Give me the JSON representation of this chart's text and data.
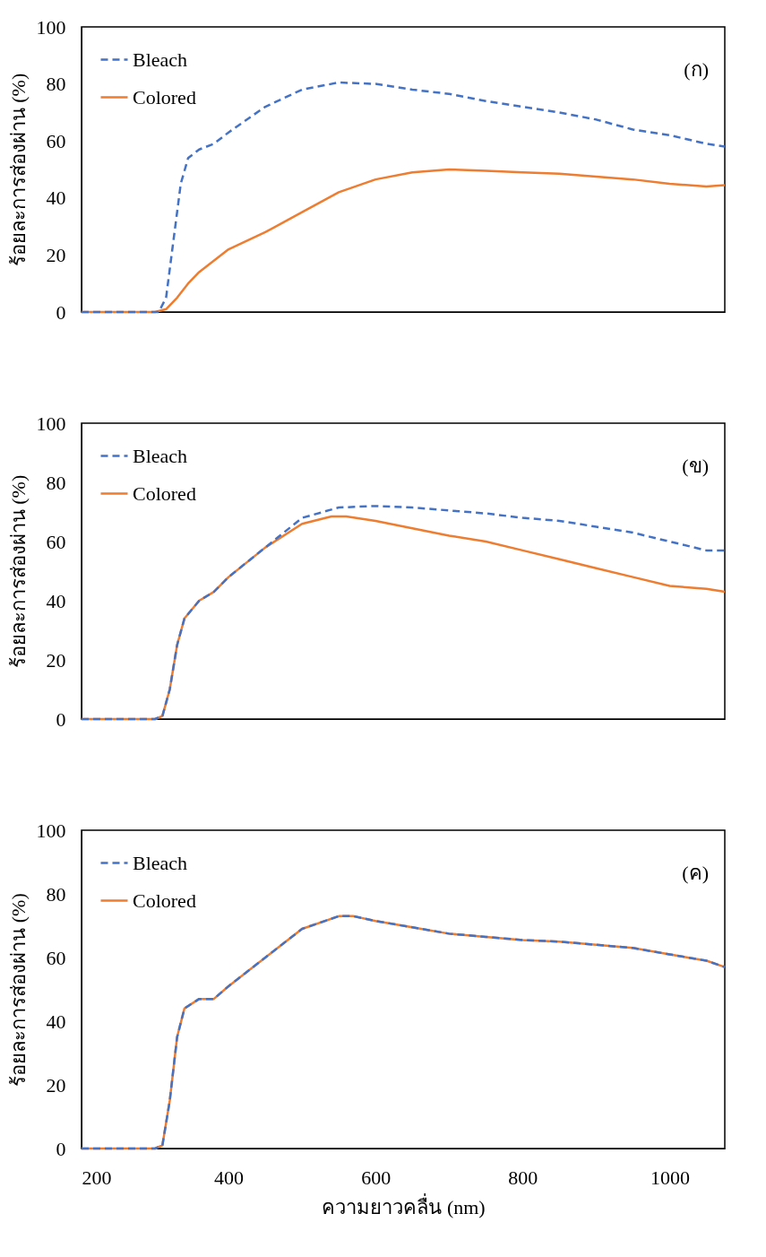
{
  "chart_data": [
    {
      "type": "line",
      "ylabel": "ร้อยละการส่องผ่าน (%)",
      "annotations": [
        "(ก)"
      ],
      "xlim": [
        200,
        1075
      ],
      "xticks": [
        200,
        400,
        600,
        800,
        1000
      ],
      "ylim": [
        0,
        100
      ],
      "yticks": [
        0,
        20,
        40,
        60,
        80,
        100
      ],
      "tick_labels": "y",
      "legend": "top left",
      "grid": false,
      "marker": "none",
      "series": [
        {
          "name": "Bleach",
          "color": "#4472c4",
          "line_style": "dashed",
          "x": [
            200,
            290,
            305,
            315,
            325,
            335,
            345,
            360,
            380,
            400,
            450,
            500,
            550,
            600,
            650,
            700,
            750,
            800,
            850,
            900,
            950,
            1000,
            1050,
            1075
          ],
          "values": [
            0,
            0,
            0,
            5,
            25,
            45,
            54,
            57,
            59,
            63,
            72,
            78,
            80.5,
            80,
            78,
            76.5,
            74,
            72,
            70,
            67.5,
            64,
            62,
            59,
            58
          ]
        },
        {
          "name": "Colored",
          "color": "#ed7d31",
          "line_style": "solid",
          "x": [
            200,
            300,
            315,
            330,
            345,
            360,
            380,
            400,
            450,
            500,
            550,
            600,
            650,
            700,
            750,
            800,
            850,
            900,
            950,
            1000,
            1050,
            1075
          ],
          "values": [
            0,
            0,
            1,
            5,
            10,
            14,
            18,
            22,
            28,
            35,
            42,
            46.5,
            49,
            50,
            49.5,
            49,
            48.5,
            47.5,
            46.5,
            45,
            44,
            44.5
          ]
        }
      ]
    },
    {
      "type": "line",
      "ylabel": "ร้อยละการส่องผ่าน (%)",
      "annotations": [
        "(ข)"
      ],
      "xlim": [
        200,
        1075
      ],
      "xticks": [
        200,
        400,
        600,
        800,
        1000
      ],
      "ylim": [
        0,
        100
      ],
      "yticks": [
        0,
        20,
        40,
        60,
        80,
        100
      ],
      "tick_labels": "y",
      "legend": "top left",
      "grid": false,
      "marker": "none",
      "series": [
        {
          "name": "Bleach",
          "color": "#4472c4",
          "line_style": "dashed",
          "x": [
            200,
            300,
            310,
            320,
            330,
            340,
            360,
            380,
            400,
            450,
            500,
            550,
            600,
            650,
            700,
            750,
            800,
            850,
            900,
            950,
            1000,
            1050,
            1075
          ],
          "values": [
            0,
            0,
            1,
            10,
            25,
            34,
            40,
            43,
            48,
            58,
            68,
            71.5,
            72,
            71.5,
            70.5,
            69.5,
            68,
            67,
            65,
            63,
            60,
            57,
            57
          ]
        },
        {
          "name": "Colored",
          "color": "#ed7d31",
          "line_style": "solid",
          "x": [
            200,
            300,
            310,
            320,
            330,
            340,
            360,
            380,
            400,
            450,
            500,
            540,
            560,
            600,
            650,
            700,
            750,
            800,
            850,
            900,
            950,
            1000,
            1050,
            1075
          ],
          "values": [
            0,
            0,
            1,
            10,
            25,
            34,
            40,
            43,
            48,
            58,
            66,
            68.5,
            68.5,
            67,
            64.5,
            62,
            60,
            57,
            54,
            51,
            48,
            45,
            44,
            43
          ]
        }
      ]
    },
    {
      "type": "line",
      "xlabel": "ความยาวคลื่น (nm)",
      "ylabel": "ร้อยละการส่องผ่าน (%)",
      "annotations": [
        "(ค)"
      ],
      "xlim": [
        200,
        1075
      ],
      "xticks": [
        200,
        400,
        600,
        800,
        1000
      ],
      "ylim": [
        0,
        100
      ],
      "yticks": [
        0,
        20,
        40,
        60,
        80,
        100
      ],
      "legend": "top left",
      "grid": false,
      "marker": "none",
      "series": [
        {
          "name": "Bleach",
          "color": "#4472c4",
          "line_style": "dashed",
          "x": [
            200,
            300,
            310,
            320,
            330,
            340,
            360,
            380,
            400,
            450,
            500,
            550,
            570,
            600,
            650,
            700,
            750,
            800,
            850,
            900,
            950,
            1000,
            1050,
            1075
          ],
          "values": [
            0,
            0,
            1,
            15,
            35,
            44,
            47,
            47,
            51,
            60,
            69,
            73,
            73,
            71.5,
            69.5,
            67.5,
            66.5,
            65.5,
            65,
            64,
            63,
            61,
            59,
            57
          ]
        },
        {
          "name": "Colored",
          "color": "#ed7d31",
          "line_style": "solid",
          "x": [
            200,
            300,
            310,
            320,
            330,
            340,
            360,
            380,
            400,
            450,
            500,
            550,
            570,
            600,
            650,
            700,
            750,
            800,
            850,
            900,
            950,
            1000,
            1050,
            1075
          ],
          "values": [
            0,
            0,
            1,
            15,
            35,
            44,
            47,
            47,
            51,
            60,
            69,
            73,
            73,
            71.5,
            69.5,
            67.5,
            66.5,
            65.5,
            65,
            64,
            63,
            61,
            59,
            57
          ]
        }
      ]
    }
  ]
}
